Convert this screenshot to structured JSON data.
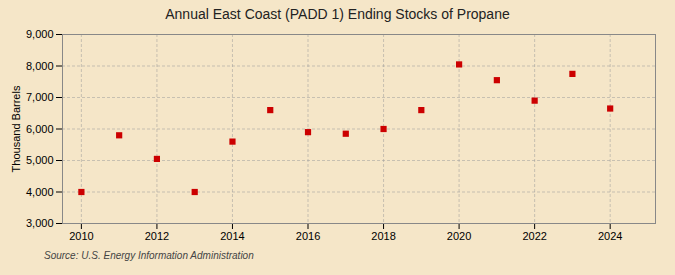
{
  "chart_data": {
    "type": "scatter",
    "title": "Annual East Coast (PADD 1) Ending Stocks of Propane",
    "ylabel": "Thousand Barrels",
    "annotations": [
      "Source: U.S. Energy Information Administration"
    ],
    "x": [
      2010,
      2011,
      2012,
      2013,
      2014,
      2015,
      2016,
      2017,
      2018,
      2019,
      2020,
      2021,
      2022,
      2023,
      2024
    ],
    "values": [
      4000,
      5800,
      5050,
      4000,
      5600,
      6600,
      5900,
      5850,
      6000,
      6600,
      8050,
      7550,
      6900,
      7750,
      6650
    ],
    "color": "#cc0000",
    "marker": "square",
    "xlim": [
      2009.5,
      2025.2
    ],
    "xticks": [
      2010,
      2012,
      2014,
      2016,
      2018,
      2020,
      2022,
      2024
    ],
    "ylim": [
      3000,
      9000
    ],
    "yticks": [
      {
        "value": 3000,
        "label": "3,000"
      },
      {
        "value": 4000,
        "label": "4,000"
      },
      {
        "value": 5000,
        "label": "5,000"
      },
      {
        "value": 6000,
        "label": "6,000"
      },
      {
        "value": 7000,
        "label": "7,000"
      },
      {
        "value": 8000,
        "label": "8,000"
      },
      {
        "value": 9000,
        "label": "9,000"
      }
    ],
    "grid": true
  }
}
